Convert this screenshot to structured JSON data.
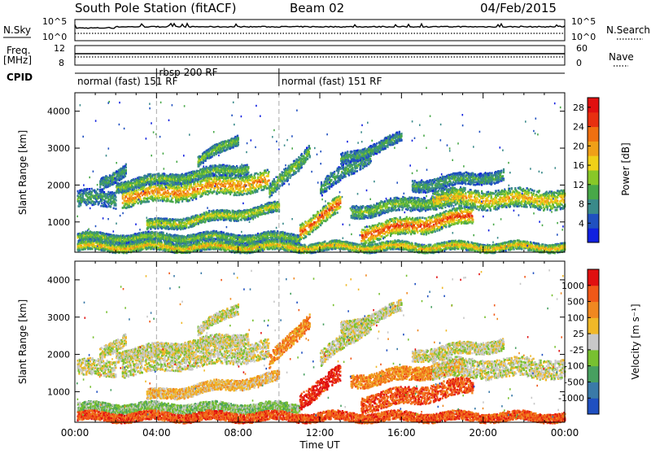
{
  "header": {
    "station": "South Pole Station (fitACF)",
    "beam": "Beam 02",
    "date": "04/Feb/2015"
  },
  "top_panels": {
    "nsky_label": "N.Sky",
    "nsky_ticks": [
      "10^5",
      "10^0"
    ],
    "nsearch_label": "N.Search",
    "nsearch_ticks": [
      "10^5",
      "10^0"
    ],
    "freq_label_1": "Freq.",
    "freq_label_2": "[MHz]",
    "freq_ticks": [
      "12",
      "8"
    ],
    "nave_label": "Nave",
    "nave_ticks": [
      "60",
      "0"
    ],
    "cpid_label": "CPID"
  },
  "cpid_segments": [
    {
      "label": "normal (fast) 151 RF",
      "start_hour": 0,
      "end_hour": 4.0
    },
    {
      "label": "rbsp 200 RF",
      "start_hour": 4.0,
      "end_hour": 10.0
    },
    {
      "label": "normal (fast) 151 RF",
      "start_hour": 10.0,
      "end_hour": 24.0
    }
  ],
  "chart_data": [
    {
      "type": "heatmap",
      "quantity": "power",
      "ylabel": "Slant Range [km]",
      "ylim": [
        180,
        4500
      ],
      "yticks": [
        "1000",
        "2000",
        "3000",
        "4000"
      ],
      "xlim": [
        0,
        24
      ],
      "colorbar_label": "Power [dB]",
      "colorbar_ticks": [
        "4",
        "8",
        "12",
        "16",
        "20",
        "24",
        "28"
      ],
      "colorbar_colors": [
        "#1020e0",
        "#2050c0",
        "#3a8a8a",
        "#48a848",
        "#88c828",
        "#f0d018",
        "#f0a018",
        "#f07010",
        "#e83010",
        "#e01010"
      ],
      "colorbar_range": [
        0,
        30
      ]
    },
    {
      "type": "heatmap",
      "quantity": "velocity",
      "ylabel": "Slant Range [km]",
      "ylim": [
        180,
        4500
      ],
      "yticks": [
        "1000",
        "2000",
        "3000",
        "4000"
      ],
      "xlim": [
        0,
        24
      ],
      "xlabel": "Time UT",
      "xticks": [
        "00:00",
        "04:00",
        "08:00",
        "12:00",
        "16:00",
        "20:00",
        "00:00"
      ],
      "colorbar_label": "Velocity [m s⁻¹]",
      "colorbar_ticks": [
        "1000",
        "500",
        "100",
        "25",
        "-25",
        "-100",
        "-500",
        "-1000"
      ],
      "colorbar_colors": [
        "#2050c0",
        "#3a7aa8",
        "#48a060",
        "#78c030",
        "#c8c8c8",
        "#f0b828",
        "#f08820",
        "#f05818",
        "#e01010"
      ]
    }
  ]
}
